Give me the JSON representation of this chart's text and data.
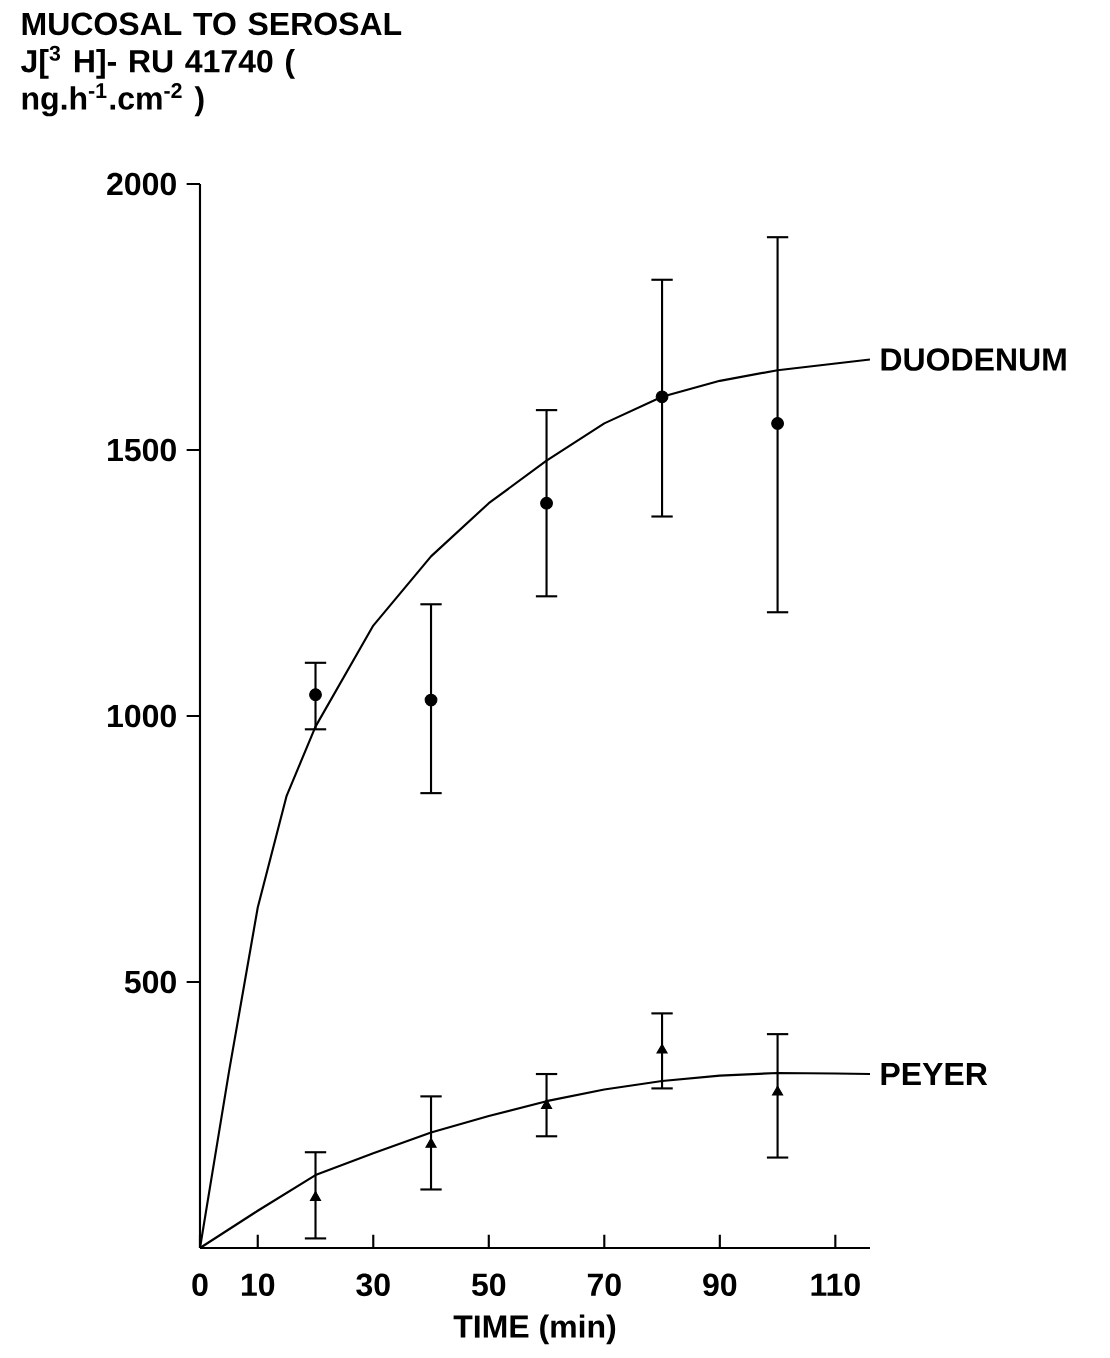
{
  "chart_data": {
    "type": "scatter",
    "ylabel": "MUCOSAL TO SEROSAL J[$^{3}$ H]- RU 41740 ( ng.h$^{-1}$.cm$^{-2}$ )",
    "xlabel": "TIME (min)",
    "xlim": [
      0,
      116
    ],
    "ylim": [
      0,
      2000
    ],
    "xticks": [
      0,
      10,
      30,
      50,
      70,
      90,
      110
    ],
    "yticks": [
      500,
      1000,
      1500,
      2000
    ],
    "series": [
      {
        "color": "#000000",
        "marker": "circle",
        "x": [
          20,
          40,
          60,
          80,
          100
        ],
        "values": [
          1040,
          1030,
          1400,
          1600,
          1550
        ],
        "errors": [
          [
            975,
            1100
          ],
          [
            855,
            1210
          ],
          [
            1225,
            1575
          ],
          [
            1375,
            1820
          ],
          [
            1195,
            1900
          ]
        ]
      },
      {
        "color": "#000000",
        "marker": "triangle",
        "x": [
          20,
          40,
          60,
          80,
          100
        ],
        "values": [
          95,
          195,
          268,
          372,
          293
        ],
        "errors": [
          [
            18,
            180
          ],
          [
            110,
            285
          ],
          [
            210,
            327
          ],
          [
            300,
            441
          ],
          [
            170,
            402
          ]
        ]
      },
      {
        "type": "line",
        "name": "DUODENUM",
        "color": "#000000",
        "line_style": "solid",
        "x": [
          0,
          5,
          10,
          15,
          20,
          30,
          40,
          50,
          60,
          70,
          80,
          90,
          100,
          116
        ],
        "values": [
          0,
          330,
          640,
          850,
          980,
          1170,
          1300,
          1400,
          1480,
          1550,
          1600,
          1630,
          1650,
          1670
        ]
      },
      {
        "type": "line",
        "name": "PEYER",
        "color": "#000000",
        "line_style": "solid",
        "x": [
          0,
          10,
          20,
          30,
          40,
          50,
          60,
          70,
          80,
          90,
          100,
          110,
          116
        ],
        "values": [
          0,
          70,
          137,
          178,
          217,
          248,
          276,
          298,
          314,
          324,
          329,
          328,
          327
        ]
      }
    ]
  }
}
